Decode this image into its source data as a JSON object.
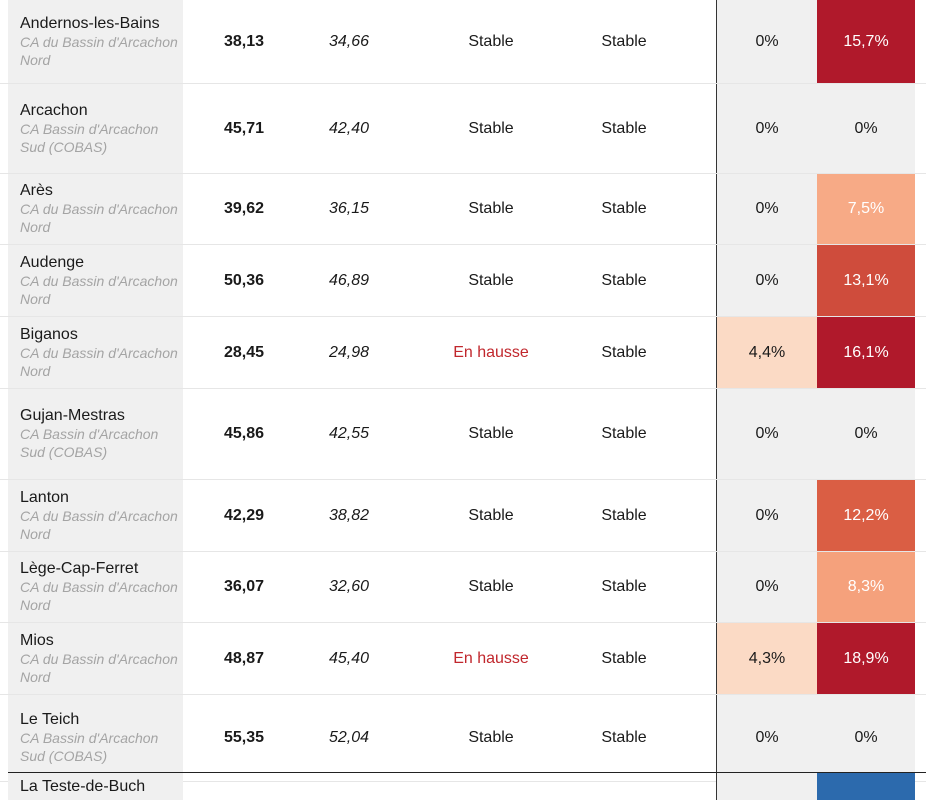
{
  "rows": [
    {
      "commune": "Andernos-les-Bains",
      "epci": "CA du Bassin d'Arcachon Nord",
      "v2025": "38,13",
      "v2024": "34,66",
      "evo1": "Stable",
      "evo2": "Stable",
      "p1": "0%",
      "p2": "15,7%",
      "p1_color": "#f0f0f0",
      "p2_color": "#b0192b",
      "evo1_hausse": false,
      "height": 83
    },
    {
      "commune": "Arcachon",
      "epci": "CA Bassin d'Arcachon Sud (COBAS)",
      "v2025": "45,71",
      "v2024": "42,40",
      "evo1": "Stable",
      "evo2": "Stable",
      "p1": "0%",
      "p2": "0%",
      "p1_color": "#f0f0f0",
      "p2_color": "#f0f0f0",
      "evo1_hausse": false,
      "height": 89
    },
    {
      "commune": "Arès",
      "epci": "CA du Bassin d'Arcachon Nord",
      "v2025": "39,62",
      "v2024": "36,15",
      "evo1": "Stable",
      "evo2": "Stable",
      "p1": "0%",
      "p2": "7,5%",
      "p1_color": "#f0f0f0",
      "p2_color": "#f7aa86",
      "evo1_hausse": false,
      "height": 70
    },
    {
      "commune": "Audenge",
      "epci": "CA du Bassin d'Arcachon Nord",
      "v2025": "50,36",
      "v2024": "46,89",
      "evo1": "Stable",
      "evo2": "Stable",
      "p1": "0%",
      "p2": "13,1%",
      "p1_color": "#f0f0f0",
      "p2_color": "#cf4c3c",
      "evo1_hausse": false,
      "height": 71
    },
    {
      "commune": "Biganos",
      "epci": "CA du Bassin d'Arcachon Nord",
      "v2025": "28,45",
      "v2024": "24,98",
      "evo1": "En hausse",
      "evo2": "Stable",
      "p1": "4,4%",
      "p2": "16,1%",
      "p1_color": "#fbdac5",
      "p2_color": "#b0192b",
      "evo1_hausse": true,
      "height": 71
    },
    {
      "commune": "Gujan-Mestras",
      "epci": "CA Bassin d'Arcachon Sud (COBAS)",
      "v2025": "45,86",
      "v2024": "42,55",
      "evo1": "Stable",
      "evo2": "Stable",
      "p1": "0%",
      "p2": "0%",
      "p1_color": "#f0f0f0",
      "p2_color": "#f0f0f0",
      "evo1_hausse": false,
      "height": 90
    },
    {
      "commune": "Lanton",
      "epci": "CA du Bassin d'Arcachon Nord",
      "v2025": "42,29",
      "v2024": "38,82",
      "evo1": "Stable",
      "evo2": "Stable",
      "p1": "0%",
      "p2": "12,2%",
      "p1_color": "#f0f0f0",
      "p2_color": "#da5e44",
      "evo1_hausse": false,
      "height": 71
    },
    {
      "commune": "Lège-Cap-Ferret",
      "epci": "CA du Bassin d'Arcachon Nord",
      "v2025": "36,07",
      "v2024": "32,60",
      "evo1": "Stable",
      "evo2": "Stable",
      "p1": "0%",
      "p2": "8,3%",
      "p1_color": "#f0f0f0",
      "p2_color": "#f5a17c",
      "evo1_hausse": false,
      "height": 70
    },
    {
      "commune": "Mios",
      "epci": "CA du Bassin d'Arcachon Nord",
      "v2025": "48,87",
      "v2024": "45,40",
      "evo1": "En hausse",
      "evo2": "Stable",
      "p1": "4,3%",
      "p2": "18,9%",
      "p1_color": "#fbdac5",
      "p2_color": "#b0192b",
      "evo1_hausse": true,
      "height": 71
    },
    {
      "commune": "Le Teich",
      "epci": "CA Bassin d'Arcachon Sud (COBAS)",
      "v2025": "55,35",
      "v2024": "52,04",
      "evo1": "Stable",
      "evo2": "Stable",
      "p1": "0%",
      "p2": "0%",
      "p1_color": "#f0f0f0",
      "p2_color": "#f0f0f0",
      "evo1_hausse": false,
      "height": 86
    }
  ],
  "partial_row": {
    "commune": "La Teste-de-Buch",
    "p2_color": "#2c6aad"
  }
}
